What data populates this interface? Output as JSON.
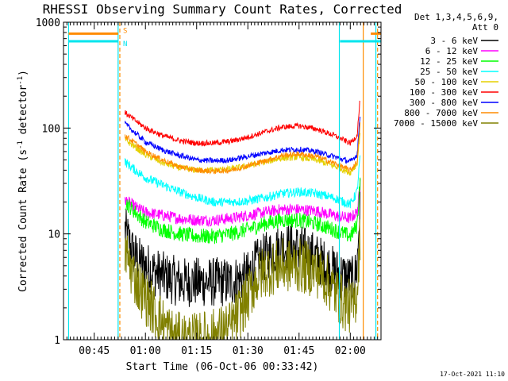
{
  "chart_data": {
    "type": "line",
    "title": "RHESSI Observing Summary Count Rates, Corrected",
    "xlabel": "Start Time (06-Oct-06 00:33:42)",
    "ylabel_main": "Corrected Count Rate (s",
    "ylabel_sup1": "-1",
    "ylabel_mid": " detector",
    "ylabel_sup2": "-1",
    "ylabel_end": ")",
    "y_scale": "log",
    "ylim": [
      1,
      1000
    ],
    "y_ticks": [
      1,
      10,
      100,
      1000
    ],
    "y_tick_labels": [
      "1",
      "10",
      "100",
      "1000"
    ],
    "xlim_min": [
      36,
      129
    ],
    "x_ticks_min": [
      45,
      60,
      75,
      90,
      105,
      120
    ],
    "x_tick_labels": [
      "00:45",
      "01:00",
      "01:15",
      "01:30",
      "01:45",
      "02:00"
    ],
    "legend_header": [
      "Det 1,3,4,5,6,9,",
      "Att 0"
    ],
    "legend_placement": "right",
    "timestamp": "17-Oct-2021 11:10",
    "flag_markers": [
      {
        "label": "S",
        "color": "#ff8c00"
      },
      {
        "label": "N",
        "color": "#00e5ee"
      }
    ],
    "flag_bars": [
      {
        "color": "#ff8c00",
        "y": 780,
        "segments": [
          [
            37.5,
            52
          ],
          [
            126,
            129
          ]
        ]
      },
      {
        "color": "#00e5ee",
        "y": 660,
        "segments": [
          [
            37.5,
            52
          ],
          [
            117,
            129
          ]
        ]
      }
    ],
    "vlines": [
      {
        "x": 37.5,
        "color": "#00e5ee",
        "dash": false
      },
      {
        "x": 52.0,
        "color": "#00e5ee",
        "dash": false
      },
      {
        "x": 52.5,
        "color": "#ff8c00",
        "dash": true
      },
      {
        "x": 116.8,
        "color": "#00e5ee",
        "dash": false
      },
      {
        "x": 123.8,
        "color": "#ff8c00",
        "dash": false
      },
      {
        "x": 127.5,
        "color": "#00e5ee",
        "dash": false
      },
      {
        "x": 128.0,
        "color": "#ff8c00",
        "dash": true
      }
    ],
    "series": [
      {
        "name": "3 - 6 keV",
        "color": "#000000",
        "x": [
          54,
          56,
          58,
          60,
          62,
          65,
          70,
          75,
          80,
          85,
          90,
          92,
          95,
          98,
          100,
          103,
          106,
          108,
          110,
          113,
          115,
          118,
          121,
          122,
          123
        ],
        "y": [
          11,
          7,
          5.5,
          5,
          4.5,
          4,
          3.5,
          3.5,
          3.5,
          3.5,
          4,
          5,
          6,
          7,
          7.5,
          7.5,
          7,
          6.5,
          6,
          5,
          4.5,
          4,
          3.5,
          5,
          25
        ]
      },
      {
        "name": "6 - 12 keV",
        "color": "#ff00ff",
        "x": [
          54,
          57,
          60,
          65,
          70,
          75,
          80,
          85,
          90,
          95,
          100,
          105,
          110,
          115,
          120,
          122,
          123
        ],
        "y": [
          21,
          18,
          16,
          15,
          14,
          13.5,
          13.5,
          14,
          15,
          16,
          17,
          17,
          16.5,
          15,
          14,
          16,
          30
        ]
      },
      {
        "name": "12 - 25 keV",
        "color": "#00ff00",
        "x": [
          54,
          57,
          60,
          65,
          70,
          75,
          80,
          85,
          90,
          95,
          100,
          105,
          110,
          115,
          120,
          122,
          123
        ],
        "y": [
          20,
          16,
          13,
          11,
          10,
          9.5,
          9.5,
          10,
          11,
          12.5,
          13.5,
          13.5,
          12.5,
          11,
          9.5,
          12,
          40
        ]
      },
      {
        "name": "25 - 50 keV",
        "color": "#00ffff",
        "x": [
          54,
          57,
          60,
          65,
          70,
          75,
          80,
          85,
          90,
          95,
          100,
          105,
          110,
          115,
          120,
          122,
          123
        ],
        "y": [
          48,
          40,
          34,
          29,
          25,
          22,
          20,
          20,
          20.5,
          22,
          24,
          25,
          24,
          22,
          19,
          25,
          60
        ]
      },
      {
        "name": "50 - 100 keV",
        "color": "#e5d000",
        "x": [
          54,
          57,
          60,
          65,
          70,
          75,
          80,
          85,
          90,
          95,
          100,
          105,
          110,
          115,
          120,
          122,
          123
        ],
        "y": [
          78,
          66,
          56,
          47,
          42,
          40,
          40,
          41,
          44,
          48,
          52,
          53,
          50,
          44,
          38,
          46,
          100
        ]
      },
      {
        "name": "100 - 300 keV",
        "color": "#ff0000",
        "x": [
          54,
          57,
          60,
          65,
          70,
          75,
          80,
          85,
          90,
          95,
          100,
          105,
          110,
          115,
          120,
          122,
          123
        ],
        "y": [
          140,
          118,
          100,
          85,
          76,
          72,
          72,
          75,
          82,
          92,
          102,
          105,
          98,
          86,
          72,
          85,
          210
        ]
      },
      {
        "name": "300 - 800 keV",
        "color": "#0000ff",
        "x": [
          54,
          57,
          60,
          65,
          70,
          75,
          80,
          85,
          90,
          95,
          100,
          105,
          110,
          115,
          120,
          122,
          123
        ],
        "y": [
          110,
          90,
          74,
          62,
          55,
          50,
          49,
          50,
          54,
          58,
          62,
          63,
          60,
          54,
          48,
          56,
          150
        ]
      },
      {
        "name": "800 - 7000 keV",
        "color": "#ff8c00",
        "x": [
          54,
          57,
          60,
          65,
          70,
          75,
          80,
          85,
          90,
          95,
          100,
          105,
          110,
          115,
          120,
          122,
          123
        ],
        "y": [
          85,
          72,
          60,
          50,
          43,
          40,
          39,
          40,
          44,
          49,
          55,
          57,
          54,
          47,
          40,
          48,
          120
        ]
      },
      {
        "name": "7000 - 15000 keV",
        "color": "#808000",
        "x": [
          54,
          56,
          58,
          60,
          62,
          64,
          66,
          68,
          70,
          75,
          80,
          85,
          90,
          92,
          95,
          100,
          105,
          110,
          112,
          115,
          118,
          121,
          122,
          123
        ],
        "y": [
          7,
          4.5,
          3.2,
          2.5,
          2,
          1.6,
          1.3,
          1.1,
          1,
          1,
          1.1,
          1.3,
          2.5,
          3.5,
          4.5,
          5,
          5,
          4.5,
          4,
          3,
          2.2,
          2,
          3,
          12
        ]
      }
    ]
  }
}
